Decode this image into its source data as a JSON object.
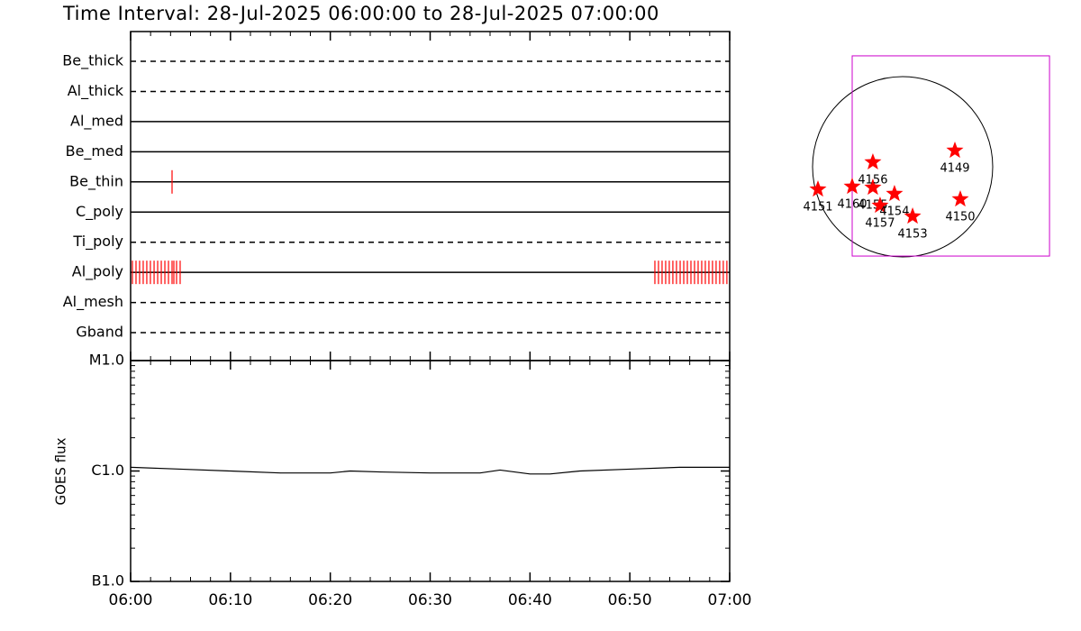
{
  "chart_data": [
    {
      "type": "timeline",
      "title": "Time Interval: 28-Jul-2025 06:00:00 to 28-Jul-2025 07:00:00",
      "xlim": [
        0,
        60
      ],
      "color": "#ff0000",
      "rows": [
        {
          "name": "Be_thick",
          "style": "dashed",
          "times": []
        },
        {
          "name": "Al_thick",
          "style": "dashed",
          "times": []
        },
        {
          "name": "Al_med",
          "style": "solid",
          "times": []
        },
        {
          "name": "Be_med",
          "style": "solid",
          "times": []
        },
        {
          "name": "Be_thin",
          "style": "solid",
          "times": [
            4.15
          ]
        },
        {
          "name": "C_poly",
          "style": "solid",
          "times": []
        },
        {
          "name": "Ti_poly",
          "style": "dashed",
          "times": []
        },
        {
          "name": "Al_poly",
          "style": "solid",
          "times": [
            0.18,
            0.54,
            0.9,
            1.26,
            1.62,
            1.98,
            2.35,
            2.71,
            3.07,
            3.43,
            3.79,
            4.15,
            4.33,
            4.6,
            4.96,
            52.51,
            52.87,
            53.23,
            53.59,
            53.95,
            54.31,
            54.67,
            55.04,
            55.4,
            55.76,
            56.12,
            56.48,
            56.84,
            57.2,
            57.56,
            57.92,
            58.28,
            58.64,
            59.0,
            59.36,
            59.72
          ]
        },
        {
          "name": "Al_mesh",
          "style": "dashed",
          "times": []
        },
        {
          "name": "Gband",
          "style": "dashed",
          "times": []
        }
      ]
    },
    {
      "type": "line",
      "ylabel": "GOES flux",
      "x": [
        0,
        5,
        10,
        15,
        20,
        22,
        25,
        30,
        35,
        37,
        40,
        42,
        45,
        50,
        55,
        60
      ],
      "values": [
        1.08e-06,
        1.04e-06,
        1e-06,
        9.6e-07,
        9.6e-07,
        1e-06,
        9.8e-07,
        9.6e-07,
        9.6e-07,
        1.02e-06,
        9.4e-07,
        9.4e-07,
        1e-06,
        1.04e-06,
        1.08e-06,
        1.08e-06
      ],
      "color": "#000000",
      "xlim": [
        0,
        60
      ],
      "xticks": [
        {
          "value": 0,
          "label": "06:00"
        },
        {
          "value": 10,
          "label": "06:10"
        },
        {
          "value": 20,
          "label": "06:20"
        },
        {
          "value": 30,
          "label": "06:30"
        },
        {
          "value": 40,
          "label": "06:40"
        },
        {
          "value": 50,
          "label": "06:50"
        },
        {
          "value": 60,
          "label": "07:00"
        }
      ],
      "ylim": [
        1e-07,
        1e-05
      ],
      "yticks": [
        {
          "value": 1e-07,
          "label": "B1.0"
        },
        {
          "value": 1e-06,
          "label": "C1.0"
        },
        {
          "value": 1e-05,
          "label": "M1.0"
        }
      ],
      "log_y": true
    },
    {
      "type": "map",
      "solar_radius": 950,
      "fov": [
        -532,
        -941,
        1549,
        1169
      ],
      "fov_color": "#cc00cc",
      "color": "#ff0000",
      "regions": [
        {
          "name": "4149",
          "x": 551,
          "y": 171
        },
        {
          "name": "4150",
          "x": 608,
          "y": -342
        },
        {
          "name": "4151",
          "x": -893,
          "y": -238
        },
        {
          "name": "4160",
          "x": -532,
          "y": -209
        },
        {
          "name": "4155",
          "x": -314,
          "y": -219
        },
        {
          "name": "4156",
          "x": -314,
          "y": 48
        },
        {
          "name": "4157",
          "x": -238,
          "y": -409
        },
        {
          "name": "4154",
          "x": -86,
          "y": -285
        },
        {
          "name": "4153",
          "x": 105,
          "y": -523
        }
      ]
    }
  ]
}
